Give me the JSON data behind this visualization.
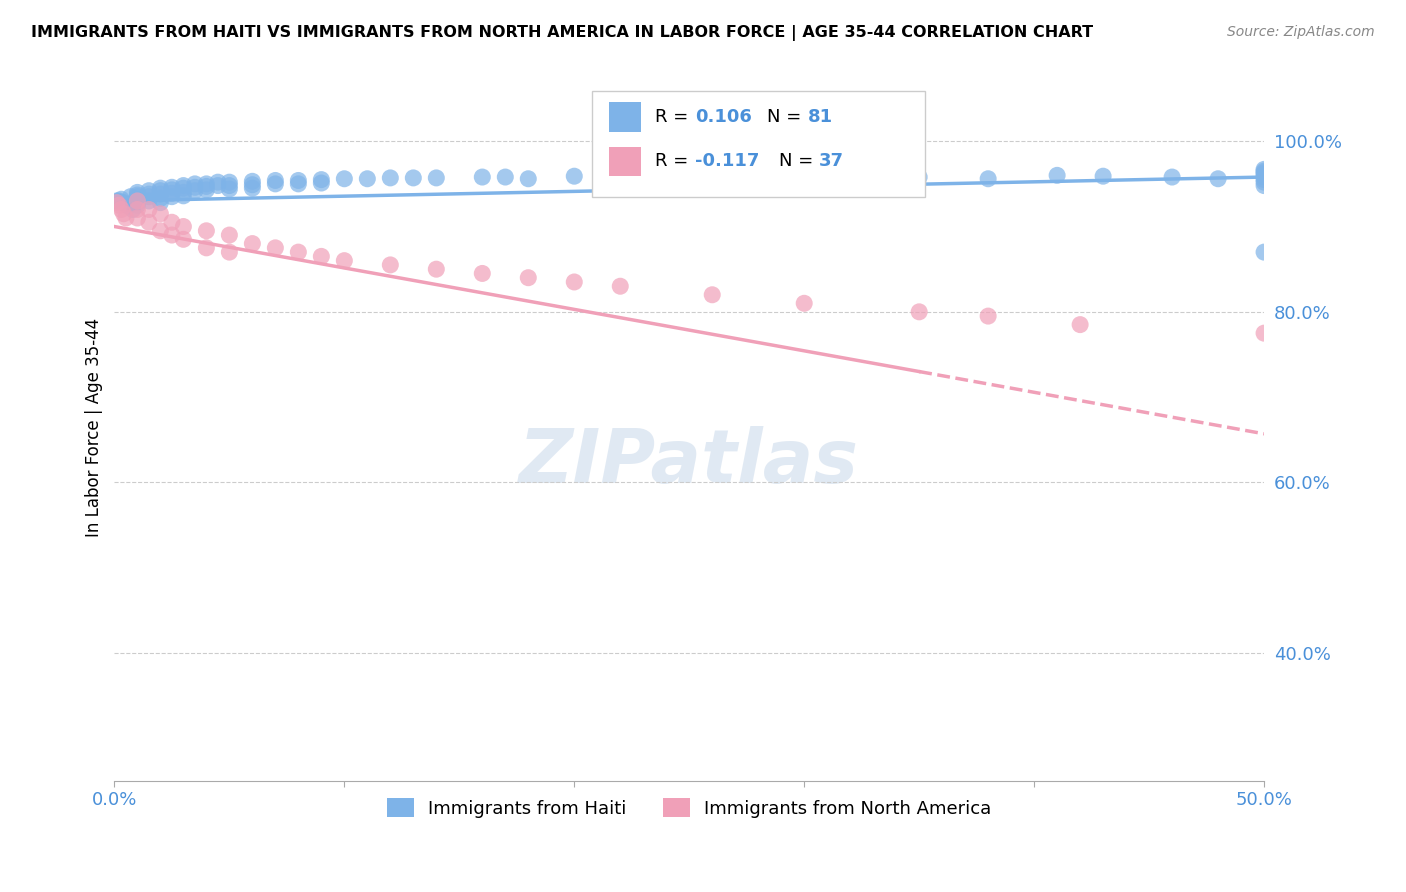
{
  "title": "IMMIGRANTS FROM HAITI VS IMMIGRANTS FROM NORTH AMERICA IN LABOR FORCE | AGE 35-44 CORRELATION CHART",
  "source": "Source: ZipAtlas.com",
  "ylabel": "In Labor Force | Age 35-44",
  "yticks_labels": [
    "40.0%",
    "60.0%",
    "80.0%",
    "100.0%"
  ],
  "ytick_vals": [
    0.4,
    0.6,
    0.8,
    1.0
  ],
  "xlim": [
    0.0,
    0.5
  ],
  "ylim": [
    0.25,
    1.08
  ],
  "color_haiti": "#7eb3e8",
  "color_north_america": "#f0a0b8",
  "watermark": "ZIPatlas",
  "haiti_x": [
    0.001,
    0.002,
    0.003,
    0.004,
    0.005,
    0.006,
    0.007,
    0.008,
    0.01,
    0.01,
    0.01,
    0.01,
    0.01,
    0.01,
    0.015,
    0.015,
    0.015,
    0.015,
    0.02,
    0.02,
    0.02,
    0.02,
    0.02,
    0.025,
    0.025,
    0.025,
    0.025,
    0.03,
    0.03,
    0.03,
    0.03,
    0.035,
    0.035,
    0.035,
    0.04,
    0.04,
    0.04,
    0.045,
    0.045,
    0.05,
    0.05,
    0.05,
    0.06,
    0.06,
    0.06,
    0.07,
    0.07,
    0.08,
    0.08,
    0.09,
    0.09,
    0.1,
    0.11,
    0.12,
    0.13,
    0.14,
    0.16,
    0.17,
    0.18,
    0.2,
    0.22,
    0.24,
    0.26,
    0.28,
    0.3,
    0.32,
    0.35,
    0.38,
    0.41,
    0.43,
    0.46,
    0.48,
    0.5,
    0.5,
    0.5,
    0.5,
    0.5,
    0.5,
    0.5,
    0.5,
    0.5
  ],
  "haiti_y": [
    0.93,
    0.93,
    0.932,
    0.928,
    0.926,
    0.924,
    0.935,
    0.92,
    0.937,
    0.935,
    0.932,
    0.928,
    0.94,
    0.925,
    0.942,
    0.938,
    0.935,
    0.93,
    0.945,
    0.942,
    0.938,
    0.933,
    0.928,
    0.946,
    0.943,
    0.939,
    0.935,
    0.948,
    0.945,
    0.94,
    0.936,
    0.95,
    0.946,
    0.942,
    0.95,
    0.947,
    0.943,
    0.952,
    0.948,
    0.952,
    0.948,
    0.944,
    0.953,
    0.949,
    0.945,
    0.954,
    0.95,
    0.954,
    0.95,
    0.955,
    0.951,
    0.956,
    0.956,
    0.957,
    0.957,
    0.957,
    0.958,
    0.958,
    0.956,
    0.959,
    0.959,
    0.958,
    0.957,
    0.956,
    0.96,
    0.959,
    0.958,
    0.956,
    0.96,
    0.959,
    0.958,
    0.956,
    0.967,
    0.965,
    0.963,
    0.961,
    0.958,
    0.955,
    0.952,
    0.948,
    0.87
  ],
  "na_x": [
    0.001,
    0.002,
    0.003,
    0.004,
    0.005,
    0.01,
    0.01,
    0.01,
    0.015,
    0.015,
    0.02,
    0.02,
    0.025,
    0.025,
    0.03,
    0.03,
    0.04,
    0.04,
    0.05,
    0.05,
    0.06,
    0.07,
    0.08,
    0.09,
    0.1,
    0.12,
    0.14,
    0.16,
    0.18,
    0.2,
    0.22,
    0.26,
    0.3,
    0.35,
    0.38,
    0.42,
    0.5
  ],
  "na_y": [
    0.928,
    0.925,
    0.92,
    0.915,
    0.91,
    0.93,
    0.92,
    0.91,
    0.92,
    0.905,
    0.915,
    0.895,
    0.905,
    0.89,
    0.9,
    0.885,
    0.895,
    0.875,
    0.89,
    0.87,
    0.88,
    0.875,
    0.87,
    0.865,
    0.86,
    0.855,
    0.85,
    0.845,
    0.84,
    0.835,
    0.83,
    0.82,
    0.81,
    0.8,
    0.795,
    0.785,
    0.775
  ]
}
